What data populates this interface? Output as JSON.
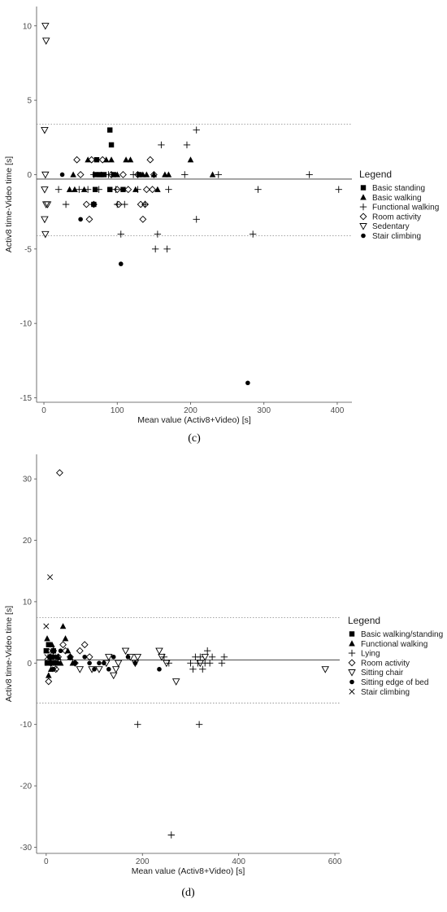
{
  "chart_data": [
    {
      "type": "scatter",
      "panel_label": "(c)",
      "xlabel": "Mean value (Activ8+Video) [s]",
      "ylabel": "Activ8 time-Video time [s]",
      "xlim": [
        -10,
        420
      ],
      "ylim": [
        -15.3,
        11.3
      ],
      "xticks": [
        0,
        100,
        200,
        300,
        400
      ],
      "yticks": [
        -15,
        -10,
        -5,
        0,
        5,
        10
      ],
      "mean_line": -0.3,
      "upper_limit": 3.4,
      "lower_limit": -4.1,
      "grid": false,
      "legend": {
        "title": "Legend",
        "placement": "right",
        "entries": [
          {
            "name": "Basic standing",
            "marker": "square"
          },
          {
            "name": "Basic walking",
            "marker": "triangle"
          },
          {
            "name": "Functional walking",
            "marker": "plus"
          },
          {
            "name": "Room activity",
            "marker": "diamond"
          },
          {
            "name": "Sedentary",
            "marker": "triangle-down"
          },
          {
            "name": "Stair climbing",
            "marker": "circle"
          }
        ]
      },
      "series": [
        {
          "name": "Basic standing",
          "marker": "square",
          "points": [
            [
              70,
              0
            ],
            [
              72,
              1
            ],
            [
              76,
              0
            ],
            [
              82,
              0
            ],
            [
              90,
              3
            ],
            [
              92,
              2
            ],
            [
              95,
              0
            ],
            [
              108,
              -1
            ],
            [
              130,
              0
            ],
            [
              70,
              -1
            ],
            [
              68,
              -2
            ],
            [
              90,
              -1
            ]
          ]
        },
        {
          "name": "Basic walking",
          "marker": "triangle",
          "points": [
            [
              35,
              -1
            ],
            [
              40,
              0
            ],
            [
              42,
              -1
            ],
            [
              55,
              -1
            ],
            [
              60,
              1
            ],
            [
              78,
              0
            ],
            [
              85,
              1
            ],
            [
              92,
              1
            ],
            [
              100,
              0
            ],
            [
              112,
              1
            ],
            [
              118,
              1
            ],
            [
              125,
              -1
            ],
            [
              135,
              0
            ],
            [
              140,
              0
            ],
            [
              150,
              0
            ],
            [
              155,
              -1
            ],
            [
              165,
              0
            ],
            [
              170,
              0
            ],
            [
              200,
              1
            ],
            [
              230,
              0
            ]
          ]
        },
        {
          "name": "Functional walking",
          "marker": "plus",
          "points": [
            [
              20,
              -1
            ],
            [
              30,
              -2
            ],
            [
              48,
              -1
            ],
            [
              60,
              -1
            ],
            [
              68,
              0
            ],
            [
              75,
              -1
            ],
            [
              88,
              0
            ],
            [
              98,
              -1
            ],
            [
              100,
              -2
            ],
            [
              105,
              -4
            ],
            [
              110,
              -2
            ],
            [
              122,
              0
            ],
            [
              128,
              -1
            ],
            [
              138,
              -2
            ],
            [
              152,
              -5
            ],
            [
              155,
              -4
            ],
            [
              160,
              2
            ],
            [
              168,
              -5
            ],
            [
              170,
              -1
            ],
            [
              192,
              0
            ],
            [
              195,
              2
            ],
            [
              208,
              3
            ],
            [
              208,
              -3
            ],
            [
              238,
              0
            ],
            [
              285,
              -4
            ],
            [
              292,
              -1
            ],
            [
              362,
              0
            ],
            [
              402,
              -1
            ]
          ]
        },
        {
          "name": "Room activity",
          "marker": "diamond",
          "points": [
            [
              45,
              1
            ],
            [
              50,
              0
            ],
            [
              58,
              -2
            ],
            [
              62,
              -3
            ],
            [
              65,
              1
            ],
            [
              68,
              -2
            ],
            [
              80,
              1
            ],
            [
              92,
              0
            ],
            [
              100,
              -1
            ],
            [
              102,
              -2
            ],
            [
              108,
              0
            ],
            [
              115,
              -1
            ],
            [
              128,
              0
            ],
            [
              132,
              -2
            ],
            [
              135,
              -3
            ],
            [
              138,
              -2
            ],
            [
              140,
              -1
            ],
            [
              145,
              1
            ],
            [
              148,
              -1
            ],
            [
              150,
              0
            ]
          ]
        },
        {
          "name": "Sedentary",
          "marker": "triangle-down",
          "points": [
            [
              2,
              10
            ],
            [
              3,
              9
            ],
            [
              1,
              3
            ],
            [
              2,
              0
            ],
            [
              1,
              -1
            ],
            [
              3,
              -2
            ],
            [
              5,
              -2
            ],
            [
              1,
              -3
            ],
            [
              2,
              -4
            ]
          ]
        },
        {
          "name": "Stair climbing",
          "marker": "circle",
          "points": [
            [
              25,
              0
            ],
            [
              50,
              -3
            ],
            [
              105,
              -6
            ],
            [
              278,
              -14
            ]
          ]
        }
      ]
    },
    {
      "type": "scatter",
      "panel_label": "(d)",
      "xlabel": "Mean value (Activ8+Video) [s]",
      "ylabel": "Activ8 time-Video time [s]",
      "xlim": [
        -20,
        610
      ],
      "ylim": [
        -31,
        34
      ],
      "xticks": [
        0,
        200,
        400,
        600
      ],
      "yticks": [
        -30,
        -20,
        -10,
        0,
        10,
        20,
        30
      ],
      "mean_line": 0.5,
      "upper_limit": 7.4,
      "lower_limit": -6.5,
      "grid": false,
      "legend": {
        "title": "Legend",
        "placement": "right",
        "entries": [
          {
            "name": "Basic walking/standing",
            "marker": "square"
          },
          {
            "name": "Functional walking",
            "marker": "triangle"
          },
          {
            "name": "Lying",
            "marker": "plus"
          },
          {
            "name": "Room activity",
            "marker": "diamond"
          },
          {
            "name": "Sitting chair",
            "marker": "triangle-down"
          },
          {
            "name": "Sitting edge of bed",
            "marker": "circle"
          },
          {
            "name": "Stair climbing",
            "marker": "cross"
          }
        ]
      },
      "series": [
        {
          "name": "Basic walking/standing",
          "marker": "square",
          "points": [
            [
              0,
              2
            ],
            [
              2,
              0
            ],
            [
              5,
              3
            ],
            [
              8,
              1
            ],
            [
              10,
              0
            ],
            [
              12,
              1
            ],
            [
              15,
              2
            ],
            [
              20,
              0
            ]
          ]
        },
        {
          "name": "Functional walking",
          "marker": "triangle",
          "points": [
            [
              2,
              4
            ],
            [
              5,
              -2
            ],
            [
              10,
              -1
            ],
            [
              12,
              3
            ],
            [
              15,
              2
            ],
            [
              20,
              0
            ],
            [
              25,
              1
            ],
            [
              30,
              0
            ],
            [
              35,
              6
            ],
            [
              40,
              4
            ],
            [
              45,
              2
            ],
            [
              50,
              1
            ],
            [
              55,
              0
            ]
          ]
        },
        {
          "name": "Lying",
          "marker": "plus",
          "points": [
            [
              190,
              -10
            ],
            [
              245,
              1
            ],
            [
              255,
              0
            ],
            [
              260,
              -28
            ],
            [
              300,
              0
            ],
            [
              305,
              -1
            ],
            [
              310,
              1
            ],
            [
              315,
              0
            ],
            [
              318,
              -10
            ],
            [
              320,
              1
            ],
            [
              325,
              -1
            ],
            [
              330,
              0
            ],
            [
              335,
              2
            ],
            [
              340,
              0
            ],
            [
              345,
              1
            ],
            [
              365,
              0
            ],
            [
              370,
              1
            ]
          ]
        },
        {
          "name": "Room activity",
          "marker": "diamond",
          "points": [
            [
              5,
              -3
            ],
            [
              8,
              1
            ],
            [
              10,
              0
            ],
            [
              15,
              2
            ],
            [
              20,
              -1
            ],
            [
              25,
              1
            ],
            [
              28,
              31
            ],
            [
              35,
              3
            ],
            [
              40,
              2
            ],
            [
              50,
              1
            ],
            [
              60,
              0
            ],
            [
              70,
              2
            ],
            [
              80,
              3
            ],
            [
              90,
              1
            ]
          ]
        },
        {
          "name": "Sitting chair",
          "marker": "triangle-down",
          "points": [
            [
              70,
              -1
            ],
            [
              95,
              -1
            ],
            [
              110,
              -1
            ],
            [
              125,
              0
            ],
            [
              130,
              1
            ],
            [
              140,
              -2
            ],
            [
              145,
              -1
            ],
            [
              150,
              0
            ],
            [
              165,
              2
            ],
            [
              175,
              1
            ],
            [
              185,
              0
            ],
            [
              190,
              1
            ],
            [
              235,
              2
            ],
            [
              240,
              1
            ],
            [
              250,
              0
            ],
            [
              270,
              -3
            ],
            [
              320,
              0
            ],
            [
              330,
              1
            ],
            [
              580,
              -1
            ]
          ]
        },
        {
          "name": "Sitting edge of bed",
          "marker": "circle",
          "points": [
            [
              10,
              0
            ],
            [
              15,
              -1
            ],
            [
              20,
              1
            ],
            [
              25,
              0
            ],
            [
              30,
              2
            ],
            [
              50,
              1
            ],
            [
              60,
              0
            ],
            [
              80,
              1
            ],
            [
              90,
              0
            ],
            [
              100,
              -1
            ],
            [
              110,
              0
            ],
            [
              120,
              0
            ],
            [
              130,
              -1
            ],
            [
              140,
              1
            ],
            [
              170,
              1
            ],
            [
              185,
              0
            ],
            [
              235,
              -1
            ]
          ]
        },
        {
          "name": "Stair climbing",
          "marker": "cross",
          "points": [
            [
              0,
              6
            ],
            [
              2,
              1
            ],
            [
              5,
              0
            ],
            [
              8,
              14
            ],
            [
              10,
              2
            ],
            [
              12,
              0
            ],
            [
              15,
              1
            ],
            [
              18,
              -1
            ]
          ]
        }
      ]
    }
  ]
}
